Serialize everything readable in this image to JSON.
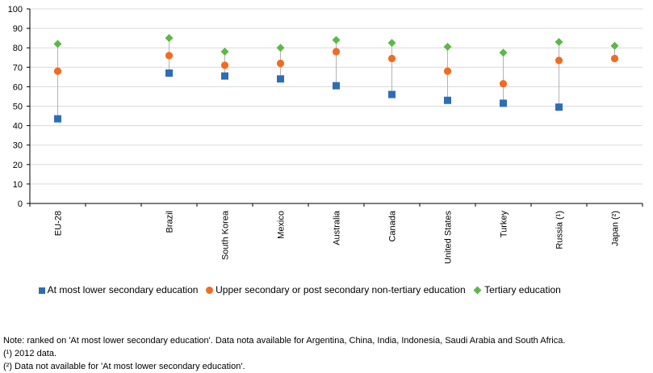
{
  "chart_data": {
    "type": "scatter",
    "categories": [
      "EU-28",
      "Brazil",
      "South Korea",
      "Mexico",
      "Australia",
      "Canada",
      "United States",
      "Turkey",
      "Russia (¹)",
      "Japan (²)"
    ],
    "series": [
      {
        "name": "At most lower secondary education",
        "color": "#2e6db4",
        "marker": "square",
        "values": [
          43.5,
          67.0,
          65.5,
          64.0,
          60.5,
          56.0,
          53.0,
          51.5,
          49.5,
          null
        ]
      },
      {
        "name": "Upper secondary or post secondary non-tertiary education",
        "color": "#f26b21",
        "marker": "circle",
        "values": [
          68.0,
          76.0,
          71.0,
          72.0,
          78.0,
          74.5,
          68.0,
          61.5,
          73.5,
          74.5
        ]
      },
      {
        "name": "Tertiary education",
        "color": "#5cb947",
        "marker": "diamond",
        "values": [
          82.0,
          85.0,
          78.0,
          80.0,
          84.0,
          82.5,
          80.5,
          77.5,
          83.0,
          81.0
        ]
      }
    ],
    "ylim": [
      0,
      100
    ],
    "yticks": [
      0,
      10,
      20,
      30,
      40,
      50,
      60,
      70,
      80,
      90,
      100
    ],
    "grid": true,
    "legend_position": "bottom"
  },
  "notes": [
    "Note: ranked on 'At most lower secondary education'. Data nota available for Argentina, China, India, Indonesia, Saudi Arabia and South Africa.",
    "(¹) 2012 data.",
    "(²) Data not available for 'At most lower secondary education'."
  ]
}
